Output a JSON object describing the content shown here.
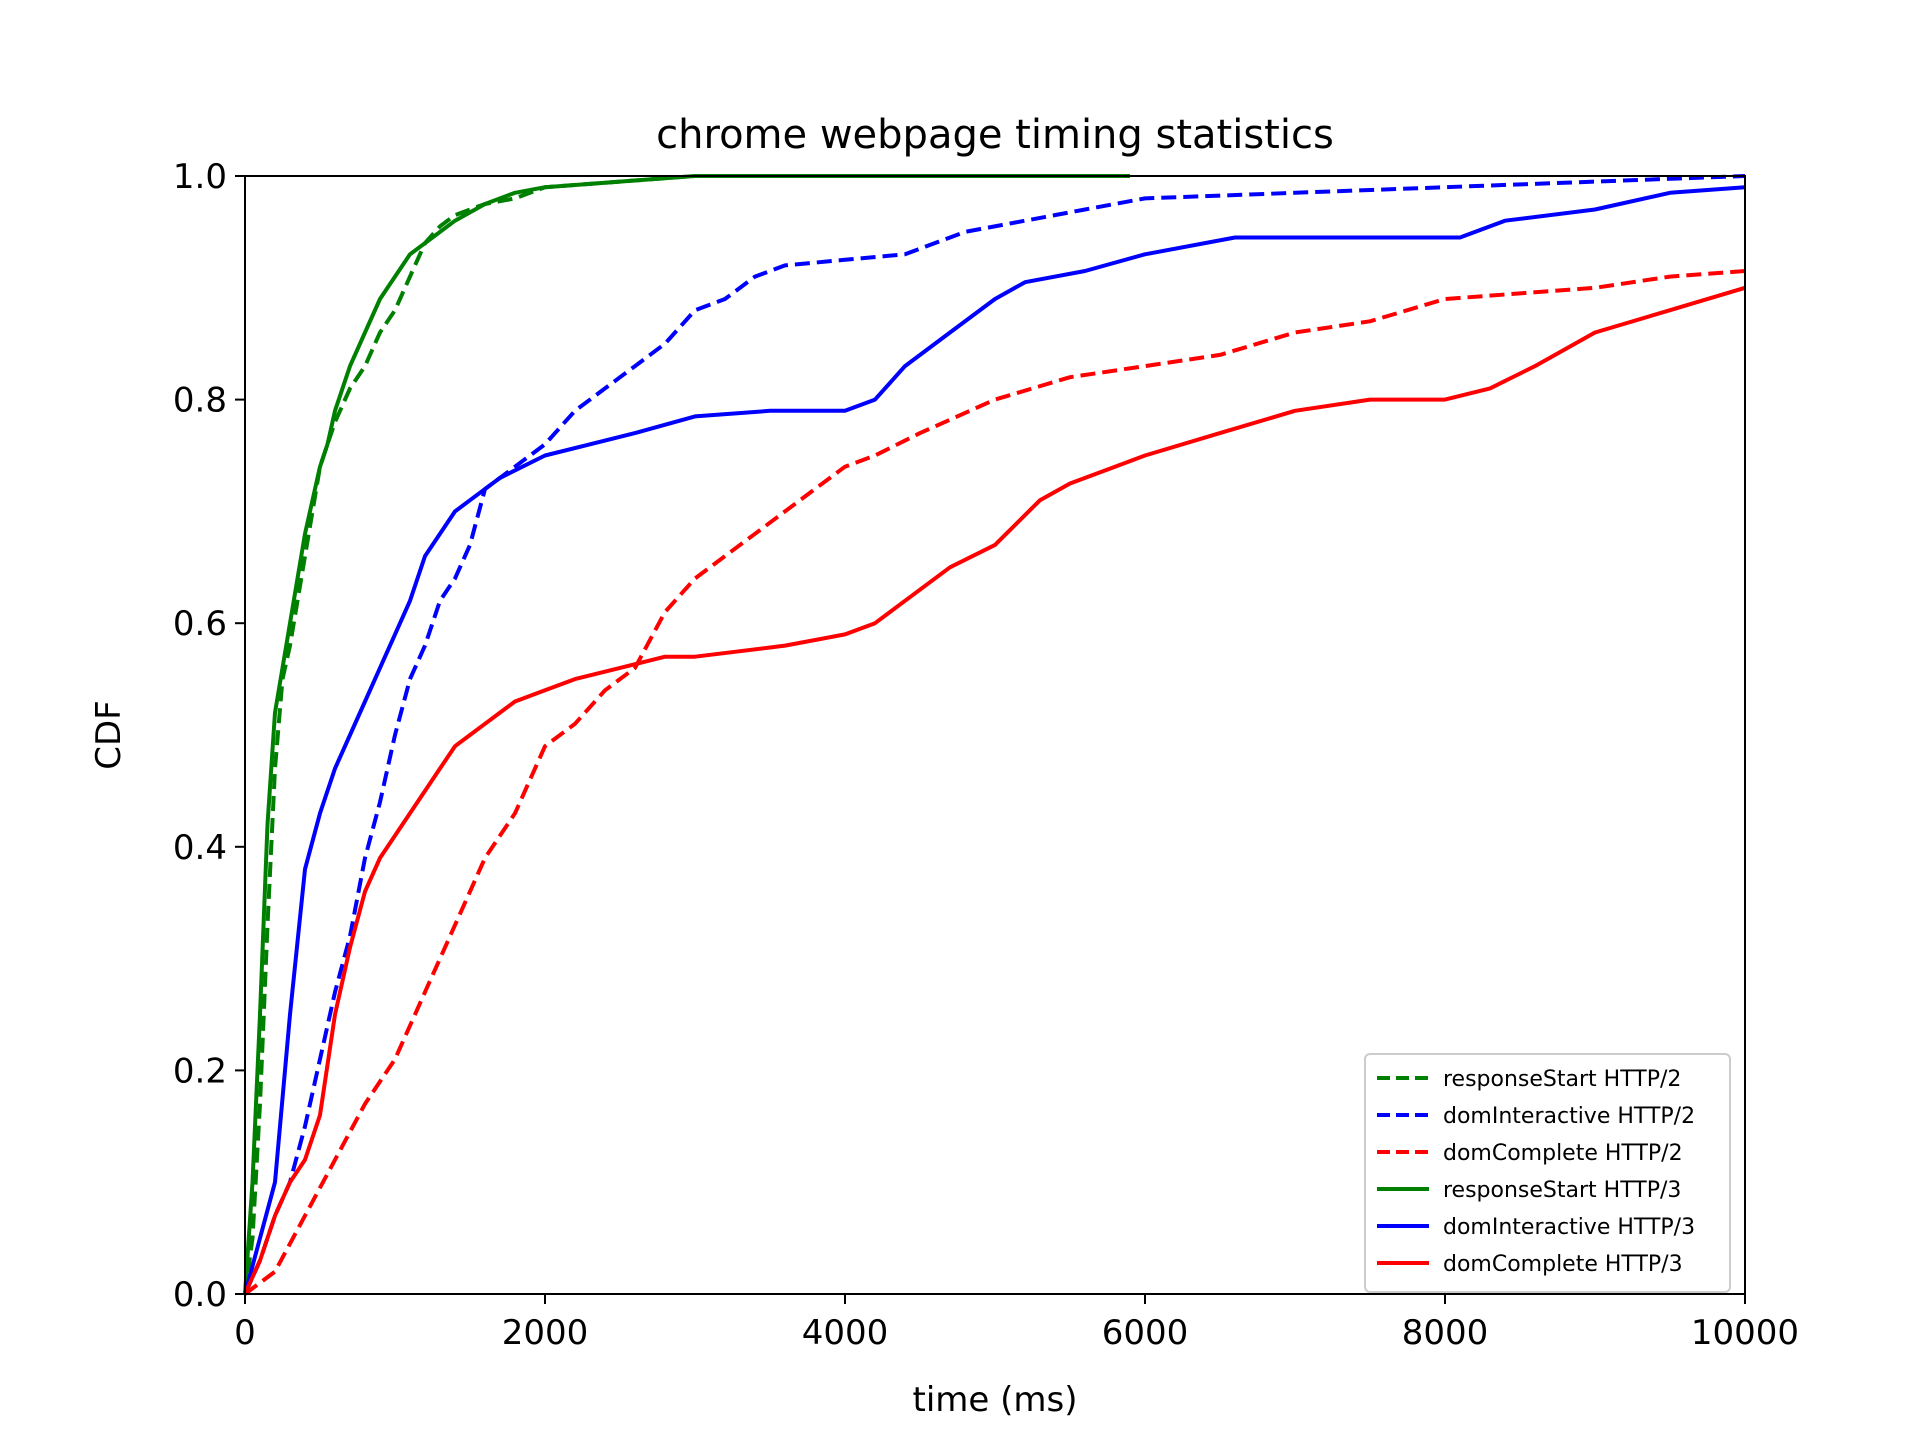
{
  "chart_data": {
    "type": "line",
    "title": "chrome webpage timing statistics",
    "xlabel": "time (ms)",
    "ylabel": "CDF",
    "xlim": [
      0,
      10000
    ],
    "ylim": [
      0,
      1.0
    ],
    "xticks": [
      0,
      2000,
      4000,
      6000,
      8000,
      10000
    ],
    "xtick_labels": [
      "0",
      "2000",
      "4000",
      "6000",
      "8000",
      "10000"
    ],
    "yticks": [
      0,
      0.2,
      0.4,
      0.6,
      0.8,
      1.0
    ],
    "ytick_labels": [
      "0.0",
      "0.2",
      "0.4",
      "0.6",
      "0.8",
      "1.0"
    ],
    "grid": false,
    "legend_position": "bottom-right",
    "series": [
      {
        "name": "responseStart HTTP/2",
        "color": "#008000",
        "style": "dashed",
        "x": [
          0,
          50,
          100,
          150,
          200,
          250,
          300,
          350,
          400,
          450,
          500,
          550,
          600,
          700,
          800,
          900,
          1000,
          1100,
          1200,
          1300,
          1400,
          1500,
          1600,
          1800,
          2000,
          2500,
          3000,
          4000,
          5000,
          5900
        ],
        "y": [
          0,
          0.05,
          0.17,
          0.33,
          0.47,
          0.55,
          0.58,
          0.62,
          0.66,
          0.7,
          0.74,
          0.76,
          0.78,
          0.81,
          0.83,
          0.86,
          0.88,
          0.91,
          0.94,
          0.955,
          0.965,
          0.97,
          0.975,
          0.98,
          0.99,
          0.995,
          1.0,
          1.0,
          1.0,
          1.0
        ]
      },
      {
        "name": "domInteractive HTTP/2",
        "color": "#0000ff",
        "style": "dashed",
        "x": [
          0,
          100,
          200,
          300,
          400,
          500,
          600,
          700,
          800,
          900,
          1000,
          1100,
          1200,
          1300,
          1400,
          1500,
          1600,
          1700,
          1800,
          1900,
          2000,
          2200,
          2400,
          2600,
          2800,
          3000,
          3200,
          3400,
          3600,
          4000,
          4400,
          4800,
          5200,
          5600,
          6000,
          7000,
          8000,
          9000,
          10000
        ],
        "y": [
          0,
          0.03,
          0.07,
          0.1,
          0.15,
          0.21,
          0.27,
          0.32,
          0.39,
          0.44,
          0.5,
          0.55,
          0.58,
          0.62,
          0.64,
          0.67,
          0.72,
          0.73,
          0.74,
          0.75,
          0.76,
          0.79,
          0.81,
          0.83,
          0.85,
          0.88,
          0.89,
          0.91,
          0.92,
          0.925,
          0.93,
          0.95,
          0.96,
          0.97,
          0.98,
          0.985,
          0.99,
          0.995,
          1.0
        ]
      },
      {
        "name": "domComplete HTTP/2",
        "color": "#ff0000",
        "style": "dashed",
        "x": [
          0,
          200,
          400,
          600,
          800,
          1000,
          1200,
          1400,
          1600,
          1800,
          2000,
          2200,
          2400,
          2600,
          2800,
          3000,
          3200,
          3400,
          3600,
          3800,
          4000,
          4200,
          4500,
          5000,
          5500,
          6000,
          6500,
          7000,
          7500,
          8000,
          8500,
          9000,
          9500,
          10000
        ],
        "y": [
          0,
          0.02,
          0.07,
          0.12,
          0.17,
          0.21,
          0.27,
          0.33,
          0.39,
          0.43,
          0.49,
          0.51,
          0.54,
          0.56,
          0.61,
          0.64,
          0.66,
          0.68,
          0.7,
          0.72,
          0.74,
          0.75,
          0.77,
          0.8,
          0.82,
          0.83,
          0.84,
          0.86,
          0.87,
          0.89,
          0.895,
          0.9,
          0.91,
          0.915
        ]
      },
      {
        "name": "responseStart HTTP/3",
        "color": "#008000",
        "style": "solid",
        "x": [
          0,
          50,
          100,
          150,
          200,
          250,
          300,
          350,
          400,
          450,
          500,
          550,
          600,
          700,
          800,
          900,
          1000,
          1100,
          1200,
          1400,
          1600,
          1800,
          2000,
          2500,
          3000,
          4000,
          5000,
          5900
        ],
        "y": [
          0,
          0.1,
          0.25,
          0.42,
          0.52,
          0.56,
          0.6,
          0.64,
          0.68,
          0.71,
          0.74,
          0.76,
          0.79,
          0.83,
          0.86,
          0.89,
          0.91,
          0.93,
          0.94,
          0.96,
          0.975,
          0.985,
          0.99,
          0.995,
          1.0,
          1.0,
          1.0,
          1.0
        ]
      },
      {
        "name": "domInteractive HTTP/3",
        "color": "#0000ff",
        "style": "solid",
        "x": [
          0,
          100,
          200,
          300,
          400,
          500,
          600,
          700,
          800,
          900,
          1000,
          1100,
          1200,
          1300,
          1400,
          1500,
          1700,
          2000,
          2300,
          2600,
          3000,
          3500,
          4000,
          4200,
          4400,
          4700,
          5000,
          5200,
          5600,
          6000,
          6600,
          7000,
          7600,
          8100,
          8400,
          9000,
          9500,
          10000
        ],
        "y": [
          0,
          0.05,
          0.1,
          0.25,
          0.38,
          0.43,
          0.47,
          0.5,
          0.53,
          0.56,
          0.59,
          0.62,
          0.66,
          0.68,
          0.7,
          0.71,
          0.73,
          0.75,
          0.76,
          0.77,
          0.785,
          0.79,
          0.79,
          0.8,
          0.83,
          0.86,
          0.89,
          0.905,
          0.915,
          0.93,
          0.945,
          0.945,
          0.945,
          0.945,
          0.96,
          0.97,
          0.985,
          0.99
        ]
      },
      {
        "name": "domComplete HTTP/3",
        "color": "#ff0000",
        "style": "solid",
        "x": [
          0,
          100,
          200,
          300,
          400,
          500,
          600,
          700,
          800,
          900,
          1000,
          1100,
          1200,
          1300,
          1400,
          1500,
          1600,
          1700,
          1800,
          2000,
          2200,
          2500,
          2800,
          3000,
          3300,
          3600,
          4000,
          4200,
          4400,
          4700,
          5000,
          5300,
          5500,
          5800,
          6000,
          6500,
          7000,
          7500,
          8000,
          8300,
          8600,
          9000,
          9500,
          10000
        ],
        "y": [
          0,
          0.03,
          0.07,
          0.1,
          0.12,
          0.16,
          0.25,
          0.31,
          0.36,
          0.39,
          0.41,
          0.43,
          0.45,
          0.47,
          0.49,
          0.5,
          0.51,
          0.52,
          0.53,
          0.54,
          0.55,
          0.56,
          0.57,
          0.57,
          0.575,
          0.58,
          0.59,
          0.6,
          0.62,
          0.65,
          0.67,
          0.71,
          0.725,
          0.74,
          0.75,
          0.77,
          0.79,
          0.8,
          0.8,
          0.81,
          0.83,
          0.86,
          0.88,
          0.9
        ]
      }
    ]
  }
}
